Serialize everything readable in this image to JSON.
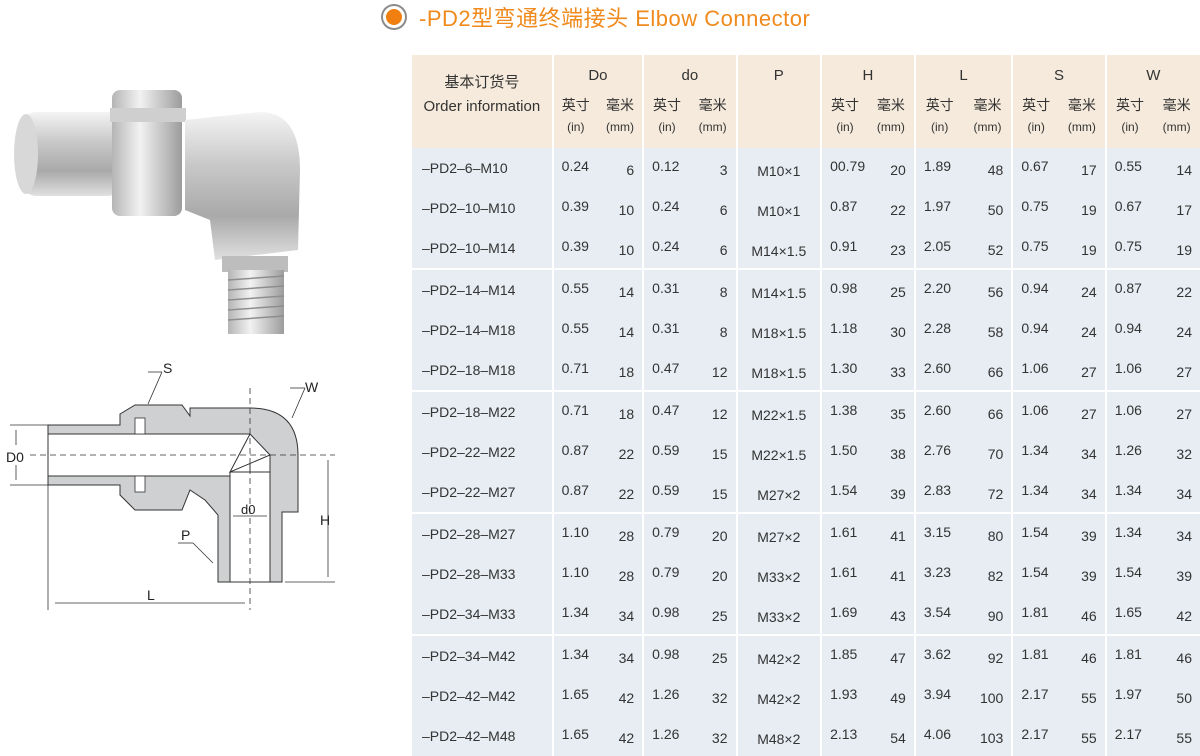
{
  "title": {
    "text": "-PD2型弯通终端接头  Elbow  Connector",
    "color": "#f08a1c",
    "bullet_icon": "radio-bullet-icon"
  },
  "diagram_labels": {
    "S": "S",
    "W": "W",
    "D0": "D0",
    "d0": "d0",
    "P": "P",
    "H": "H",
    "L": "L"
  },
  "table": {
    "header": {
      "order_cn": "基本订货号",
      "order_en": "Order information",
      "columns": [
        "Do",
        "do",
        "P",
        "H",
        "L",
        "S",
        "W"
      ],
      "unit_in_cn": "英寸",
      "unit_in": "(in)",
      "unit_mm_cn": "毫米",
      "unit_mm": "(mm)"
    },
    "rows": [
      [
        "–PD2–6–M10",
        "0.24",
        "6",
        "0.12",
        "3",
        "M10×1",
        "00.79",
        "20",
        "1.89",
        "48",
        "0.67",
        "17",
        "0.55",
        "14"
      ],
      [
        "–PD2–10–M10",
        "0.39",
        "10",
        "0.24",
        "6",
        "M10×1",
        "0.87",
        "22",
        "1.97",
        "50",
        "0.75",
        "19",
        "0.67",
        "17"
      ],
      [
        "–PD2–10–M14",
        "0.39",
        "10",
        "0.24",
        "6",
        "M14×1.5",
        "0.91",
        "23",
        "2.05",
        "52",
        "0.75",
        "19",
        "0.75",
        "19"
      ],
      [
        "–PD2–14–M14",
        "0.55",
        "14",
        "0.31",
        "8",
        "M14×1.5",
        "0.98",
        "25",
        "2.20",
        "56",
        "0.94",
        "24",
        "0.87",
        "22"
      ],
      [
        "–PD2–14–M18",
        "0.55",
        "14",
        "0.31",
        "8",
        "M18×1.5",
        "1.18",
        "30",
        "2.28",
        "58",
        "0.94",
        "24",
        "0.94",
        "24"
      ],
      [
        "–PD2–18–M18",
        "0.71",
        "18",
        "0.47",
        "12",
        "M18×1.5",
        "1.30",
        "33",
        "2.60",
        "66",
        "1.06",
        "27",
        "1.06",
        "27"
      ],
      [
        "–PD2–18–M22",
        "0.71",
        "18",
        "0.47",
        "12",
        "M22×1.5",
        "1.38",
        "35",
        "2.60",
        "66",
        "1.06",
        "27",
        "1.06",
        "27"
      ],
      [
        "–PD2–22–M22",
        "0.87",
        "22",
        "0.59",
        "15",
        "M22×1.5",
        "1.50",
        "38",
        "2.76",
        "70",
        "1.34",
        "34",
        "1.26",
        "32"
      ],
      [
        "–PD2–22–M27",
        "0.87",
        "22",
        "0.59",
        "15",
        "M27×2",
        "1.54",
        "39",
        "2.83",
        "72",
        "1.34",
        "34",
        "1.34",
        "34"
      ],
      [
        "–PD2–28–M27",
        "1.10",
        "28",
        "0.79",
        "20",
        "M27×2",
        "1.61",
        "41",
        "3.15",
        "80",
        "1.54",
        "39",
        "1.34",
        "34"
      ],
      [
        "–PD2–28–M33",
        "1.10",
        "28",
        "0.79",
        "20",
        "M33×2",
        "1.61",
        "41",
        "3.23",
        "82",
        "1.54",
        "39",
        "1.54",
        "39"
      ],
      [
        "–PD2–34–M33",
        "1.34",
        "34",
        "0.98",
        "25",
        "M33×2",
        "1.69",
        "43",
        "3.54",
        "90",
        "1.81",
        "46",
        "1.65",
        "42"
      ],
      [
        "–PD2–34–M42",
        "1.34",
        "34",
        "0.98",
        "25",
        "M42×2",
        "1.85",
        "47",
        "3.62",
        "92",
        "1.81",
        "46",
        "1.81",
        "46"
      ],
      [
        "–PD2–42–M42",
        "1.65",
        "42",
        "1.26",
        "32",
        "M42×2",
        "1.93",
        "49",
        "3.94",
        "100",
        "2.17",
        "55",
        "1.97",
        "50"
      ],
      [
        "–PD2–42–M48",
        "1.65",
        "42",
        "1.26",
        "32",
        "M48×2",
        "2.13",
        "54",
        "4.06",
        "103",
        "2.17",
        "55",
        "2.17",
        "55"
      ]
    ],
    "colors": {
      "header_bg": "#f5eadb",
      "body_bg": "#e7edf3"
    }
  }
}
